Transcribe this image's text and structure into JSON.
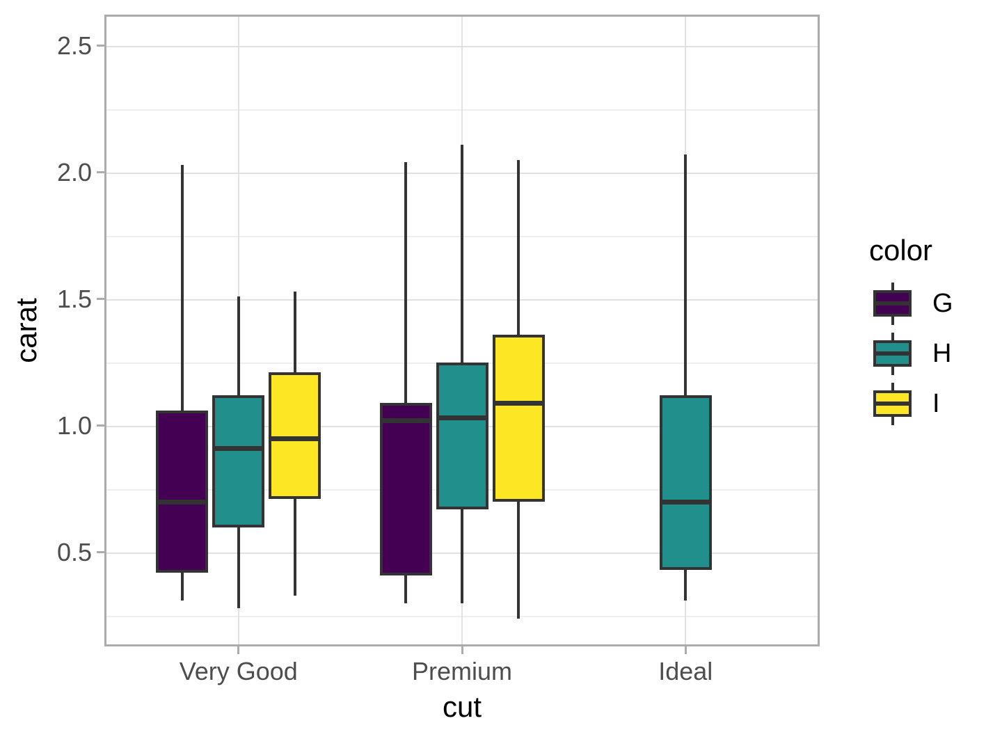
{
  "axes": {
    "x_tick_labels": [
      "Very Good",
      "Premium",
      "Ideal"
    ],
    "y_tick_labels": [
      "0.5",
      "1.0",
      "1.5",
      "2.0",
      "2.5"
    ]
  },
  "legend": {
    "title": "color",
    "entries": [
      {
        "label": "G",
        "color": "#440154"
      },
      {
        "label": "H",
        "color": "#21908C"
      },
      {
        "label": "I",
        "color": "#FDE725"
      }
    ]
  },
  "chart_data": {
    "type": "boxplot",
    "orientation": "vertical",
    "title": "",
    "xlabel": "cut",
    "ylabel": "carat",
    "categories": [
      "Very Good",
      "Premium",
      "Ideal"
    ],
    "y_ticks": [
      0.5,
      1.0,
      1.5,
      2.0,
      2.5
    ],
    "y_minor_ticks": [
      0.25,
      0.75,
      1.25,
      1.75,
      2.25
    ],
    "ylim": [
      0.129,
      2.623
    ],
    "grid": true,
    "legend_position": "right",
    "fill_legend_title": "color",
    "series": [
      {
        "name": "G",
        "fill": "#440154",
        "boxes": [
          {
            "category": "Very Good",
            "whisker_low": 0.31,
            "q1": 0.42,
            "median": 0.7,
            "q3": 1.06,
            "whisker_high": 2.03
          },
          {
            "category": "Premium",
            "whisker_low": 0.3,
            "q1": 0.41,
            "median": 1.02,
            "q3": 1.09,
            "whisker_high": 2.04
          }
        ]
      },
      {
        "name": "H",
        "fill": "#21908C",
        "boxes": [
          {
            "category": "Very Good",
            "whisker_low": 0.28,
            "q1": 0.6,
            "median": 0.91,
            "q3": 1.12,
            "whisker_high": 1.51
          },
          {
            "category": "Premium",
            "whisker_low": 0.3,
            "q1": 0.67,
            "median": 1.03,
            "q3": 1.25,
            "whisker_high": 2.11
          },
          {
            "category": "Ideal",
            "whisker_low": 0.31,
            "q1": 0.43,
            "median": 0.7,
            "q3": 1.12,
            "whisker_high": 2.07
          }
        ]
      },
      {
        "name": "I",
        "fill": "#FDE725",
        "boxes": [
          {
            "category": "Very Good",
            "whisker_low": 0.33,
            "q1": 0.71,
            "median": 0.95,
            "q3": 1.21,
            "whisker_high": 1.53
          },
          {
            "category": "Premium",
            "whisker_low": 0.24,
            "q1": 0.7,
            "median": 1.09,
            "q3": 1.36,
            "whisker_high": 2.05
          }
        ]
      }
    ]
  },
  "style": {
    "box_border": "#333333",
    "panel_border": "#ABABAB",
    "grid_major": "#E1E1E1",
    "grid_minor": "#EEEEEE",
    "tick_color": "#ACACAC",
    "axis_text_color": "#4D4D4D",
    "title_color": "#000000",
    "background": "#FFFFFF"
  }
}
